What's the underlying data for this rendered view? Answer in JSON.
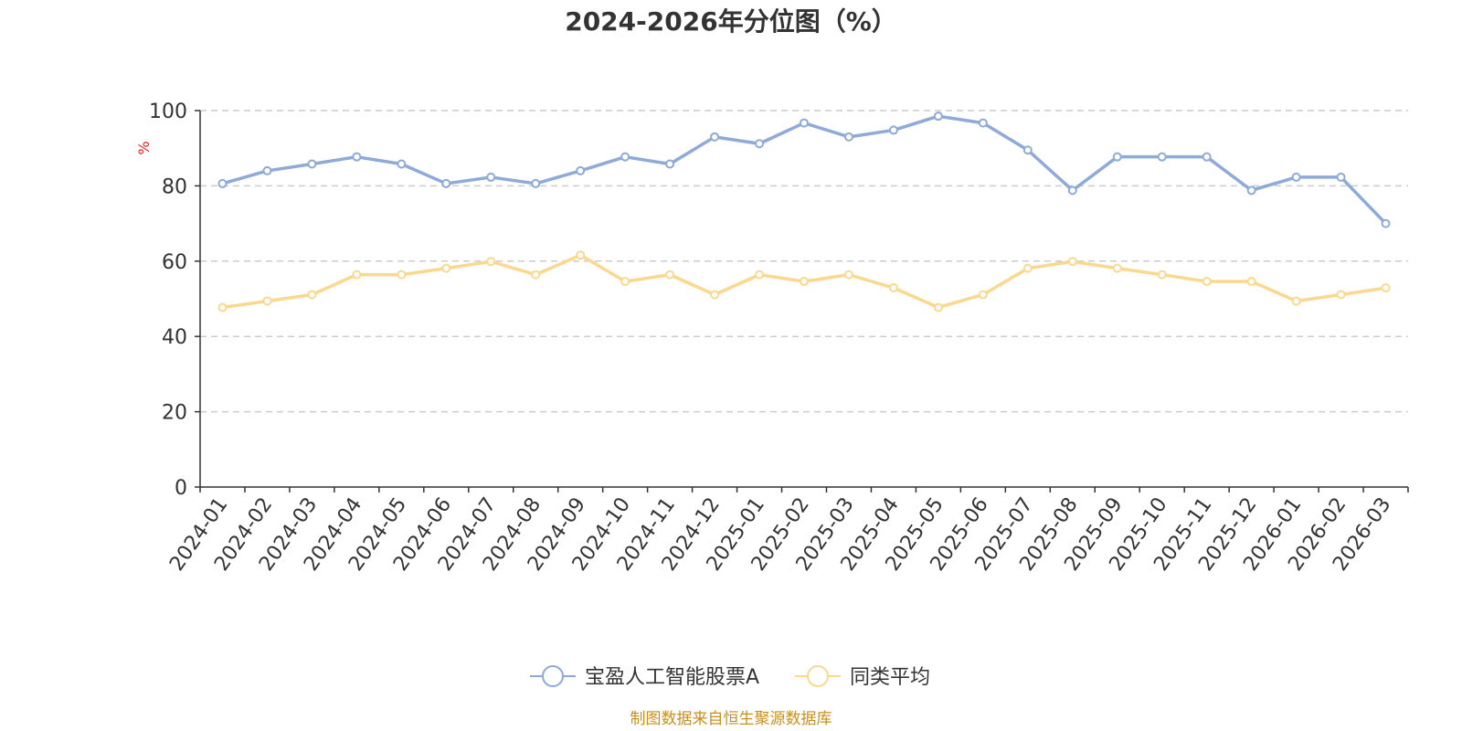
{
  "chart_data": {
    "type": "line",
    "title": "2024-2026年分位图（%）",
    "ylabel": "%",
    "ylim": [
      0,
      100
    ],
    "yticks": [
      0,
      20,
      40,
      60,
      80,
      100
    ],
    "grid": true,
    "legend_position": "bottom",
    "categories": [
      "2024-01",
      "2024-02",
      "2024-03",
      "2024-04",
      "2024-05",
      "2024-06",
      "2024-07",
      "2024-08",
      "2024-09",
      "2024-10",
      "2024-11",
      "2024-12",
      "2025-01",
      "2025-02",
      "2025-03",
      "2025-04",
      "2025-05",
      "2025-06",
      "2025-07",
      "2025-08",
      "2025-09",
      "2025-10",
      "2025-11",
      "2025-12",
      "2026-01",
      "2026-02",
      "2026-03"
    ],
    "series": [
      {
        "name": "宝盈人工智能股票A",
        "color": "#8eaad8",
        "values": [
          80.6,
          84.0,
          85.8,
          87.7,
          85.8,
          80.6,
          82.3,
          80.6,
          84.0,
          87.7,
          85.8,
          93.0,
          91.2,
          96.7,
          93.0,
          94.8,
          98.5,
          96.7,
          89.5,
          78.8,
          87.7,
          87.7,
          87.7,
          78.8,
          82.3,
          82.3,
          70.0
        ]
      },
      {
        "name": "同类平均",
        "color": "#fbd88e",
        "values": [
          47.7,
          49.4,
          51.1,
          56.4,
          56.4,
          58.1,
          59.9,
          56.4,
          61.6,
          54.6,
          56.4,
          51.1,
          56.4,
          54.6,
          56.4,
          52.9,
          47.7,
          51.1,
          58.1,
          59.9,
          58.1,
          56.4,
          54.6,
          54.6,
          49.4,
          51.1,
          52.9
        ]
      }
    ]
  },
  "footer": {
    "source": "制图数据来自恒生聚源数据库"
  }
}
